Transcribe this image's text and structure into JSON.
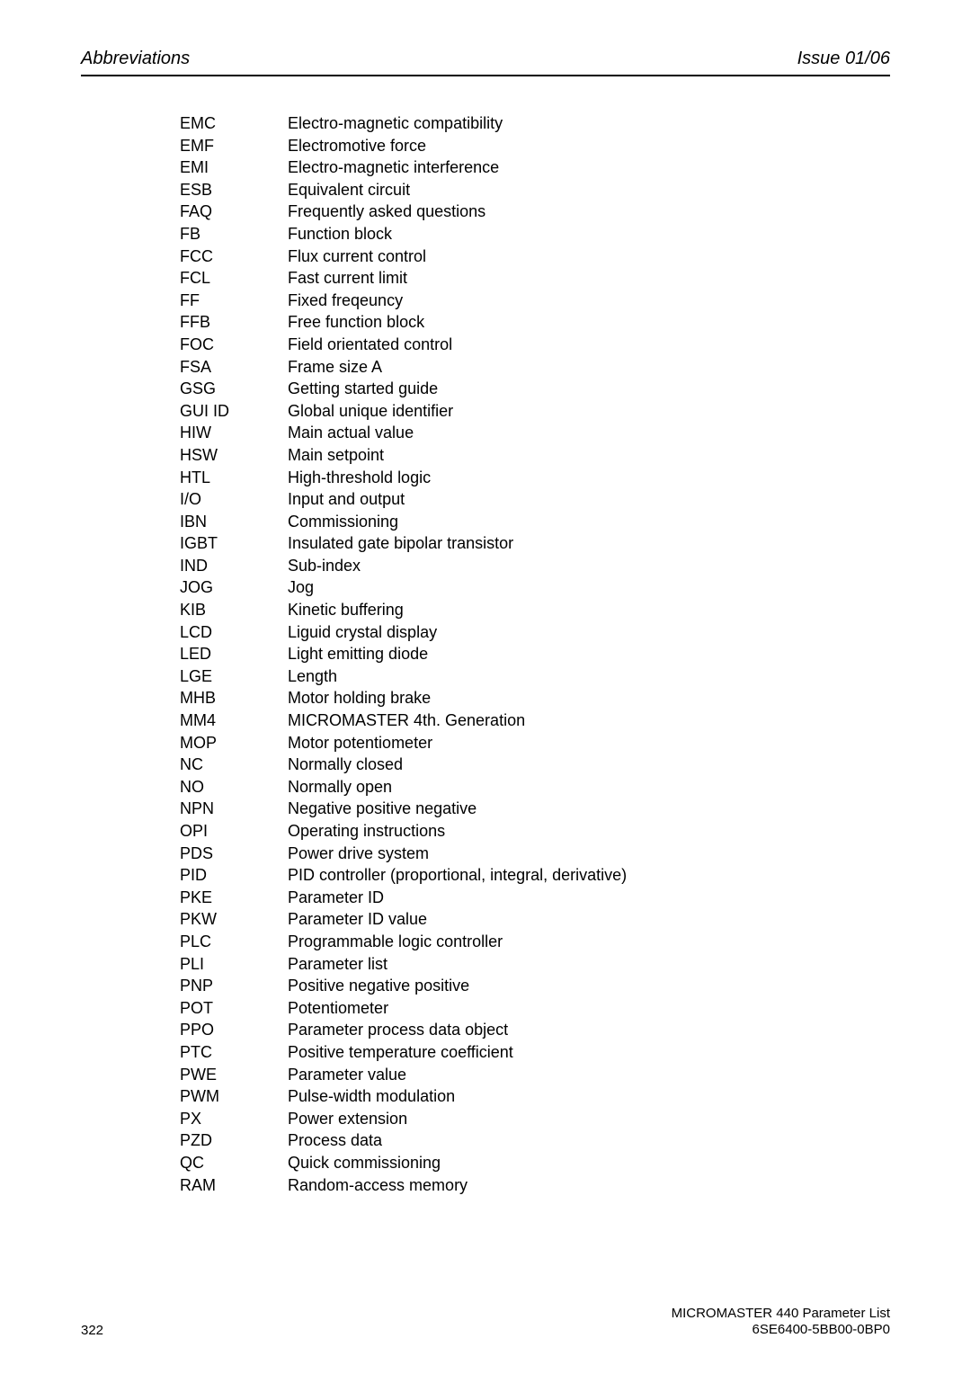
{
  "header": {
    "left": "Abbreviations",
    "right": "Issue 01/06"
  },
  "abbreviations": [
    {
      "key": "EMC",
      "val": "Electro-magnetic compatibility"
    },
    {
      "key": "EMF",
      "val": "Electromotive force"
    },
    {
      "key": "EMI",
      "val": "Electro-magnetic interference"
    },
    {
      "key": "ESB",
      "val": "Equivalent circuit"
    },
    {
      "key": "FAQ",
      "val": "Frequently asked questions"
    },
    {
      "key": "FB",
      "val": "Function block"
    },
    {
      "key": "FCC",
      "val": "Flux current control"
    },
    {
      "key": "FCL",
      "val": "Fast current limit"
    },
    {
      "key": "FF",
      "val": "Fixed freqeuncy"
    },
    {
      "key": "FFB",
      "val": "Free function block"
    },
    {
      "key": "FOC",
      "val": "Field orientated control"
    },
    {
      "key": "FSA",
      "val": "Frame size A"
    },
    {
      "key": "GSG",
      "val": "Getting started guide"
    },
    {
      "key": "GUI ID",
      "val": "Global unique identifier"
    },
    {
      "key": "HIW",
      "val": "Main actual value"
    },
    {
      "key": "HSW",
      "val": "Main setpoint"
    },
    {
      "key": "HTL",
      "val": "High-threshold logic"
    },
    {
      "key": "I/O",
      "val": "Input and output"
    },
    {
      "key": "IBN",
      "val": "Commissioning"
    },
    {
      "key": "IGBT",
      "val": "Insulated gate bipolar transistor"
    },
    {
      "key": "IND",
      "val": "Sub-index"
    },
    {
      "key": "JOG",
      "val": "Jog"
    },
    {
      "key": "KIB",
      "val": "Kinetic buffering"
    },
    {
      "key": "LCD",
      "val": "Liguid crystal display"
    },
    {
      "key": "LED",
      "val": "Light emitting diode"
    },
    {
      "key": "LGE",
      "val": "Length"
    },
    {
      "key": "MHB",
      "val": "Motor holding brake"
    },
    {
      "key": "MM4",
      "val": "MICROMASTER 4th. Generation"
    },
    {
      "key": "MOP",
      "val": "Motor potentiometer"
    },
    {
      "key": "NC",
      "val": "Normally closed"
    },
    {
      "key": "NO",
      "val": "Normally open"
    },
    {
      "key": "NPN",
      "val": "Negative positive negative"
    },
    {
      "key": "OPI",
      "val": "Operating instructions"
    },
    {
      "key": "PDS",
      "val": "Power drive system"
    },
    {
      "key": "PID",
      "val": "PID controller (proportional, integral, derivative)"
    },
    {
      "key": "PKE",
      "val": "Parameter ID"
    },
    {
      "key": "PKW",
      "val": "Parameter ID value"
    },
    {
      "key": "PLC",
      "val": "Programmable logic controller"
    },
    {
      "key": "PLI",
      "val": "Parameter list"
    },
    {
      "key": "PNP",
      "val": "Positive negative positive"
    },
    {
      "key": "POT",
      "val": "Potentiometer"
    },
    {
      "key": "PPO",
      "val": "Parameter process data object"
    },
    {
      "key": "PTC",
      "val": "Positive temperature coefficient"
    },
    {
      "key": "PWE",
      "val": "Parameter value"
    },
    {
      "key": "PWM",
      "val": "Pulse-width modulation"
    },
    {
      "key": "PX",
      "val": "Power extension"
    },
    {
      "key": "PZD",
      "val": "Process data"
    },
    {
      "key": "QC",
      "val": "Quick commissioning"
    },
    {
      "key": "RAM",
      "val": "Random-access memory"
    }
  ],
  "footer": {
    "page_number": "322",
    "right_line1": "MICROMASTER 440    Parameter List",
    "right_line2": "6SE6400-5BB00-0BP0"
  }
}
